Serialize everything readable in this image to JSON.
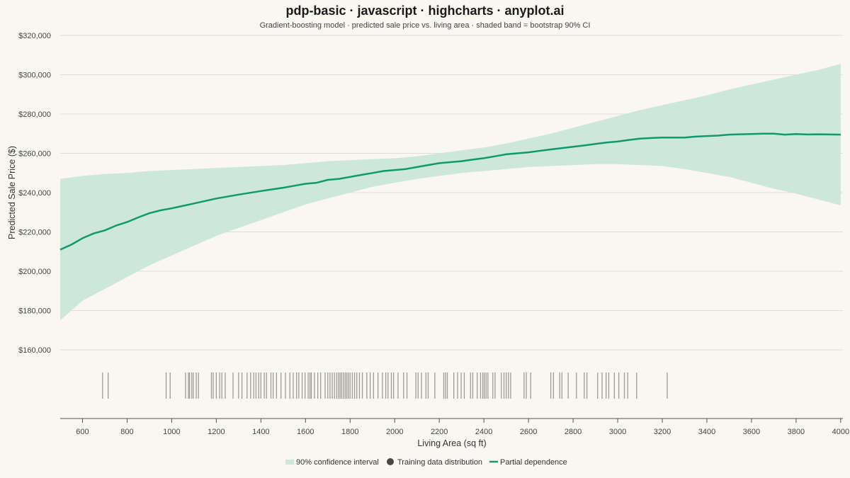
{
  "chart_data": {
    "type": "line",
    "title": "pdp-basic · javascript · highcharts · anyplot.ai",
    "subtitle": "Gradient-boosting model · predicted sale price vs. living area · shaded band = bootstrap 90% CI",
    "xlabel": "Living Area (sq ft)",
    "ylabel": "Predicted Sale Price ($)",
    "xlim": [
      500,
      4010
    ],
    "ylim": [
      160000,
      320000
    ],
    "x_ticks": [
      600,
      800,
      1000,
      1200,
      1400,
      1600,
      1800,
      2000,
      2200,
      2400,
      2600,
      2800,
      3000,
      3200,
      3400,
      3600,
      3800,
      4000
    ],
    "y_ticks": [
      160000,
      180000,
      200000,
      220000,
      240000,
      260000,
      280000,
      300000,
      320000
    ],
    "x_tick_labels": [
      "600",
      "800",
      "1000",
      "1200",
      "1400",
      "1600",
      "1800",
      "2000",
      "2200",
      "2400",
      "2600",
      "2800",
      "3000",
      "3200",
      "3400",
      "3600",
      "3800",
      "4000"
    ],
    "y_tick_labels": [
      "$160,000",
      "$180,000",
      "$200,000",
      "$220,000",
      "$240,000",
      "$260,000",
      "$280,000",
      "$300,000",
      "$320,000"
    ],
    "grid": true,
    "legend_placement": "bottom-center",
    "colors": {
      "line": "#0E9A6C",
      "band": "#CDE7DB",
      "rug": "#9E9B94",
      "grid": "#E0DDD6",
      "axis": "#555555"
    },
    "legend": [
      {
        "name": "90% confidence interval",
        "symbol": "band"
      },
      {
        "name": "Training data distribution",
        "symbol": "dot"
      },
      {
        "name": "Partial dependence",
        "symbol": "line"
      }
    ],
    "series": [
      {
        "name": "Partial dependence",
        "x": [
          500,
          550,
          600,
          650,
          700,
          750,
          800,
          850,
          900,
          950,
          1000,
          1100,
          1200,
          1300,
          1400,
          1500,
          1550,
          1600,
          1650,
          1700,
          1750,
          1800,
          1850,
          1900,
          1950,
          2000,
          2050,
          2100,
          2150,
          2200,
          2250,
          2300,
          2350,
          2400,
          2450,
          2500,
          2600,
          2700,
          2800,
          2850,
          2900,
          2950,
          3000,
          3050,
          3100,
          3150,
          3200,
          3250,
          3300,
          3350,
          3400,
          3450,
          3500,
          3550,
          3600,
          3650,
          3700,
          3750,
          3800,
          3850,
          3900,
          3950,
          4000
        ],
        "y": [
          211000,
          213500,
          216800,
          219200,
          220800,
          223200,
          225000,
          227400,
          229500,
          231000,
          232000,
          234500,
          237000,
          239000,
          240800,
          242500,
          243500,
          244500,
          245000,
          246500,
          247000,
          248000,
          249000,
          250000,
          251000,
          251500,
          252000,
          253000,
          254000,
          255000,
          255500,
          256000,
          256800,
          257500,
          258500,
          259500,
          260500,
          262000,
          263300,
          264000,
          264800,
          265500,
          266000,
          266800,
          267500,
          267800,
          268000,
          268000,
          268000,
          268500,
          268800,
          269000,
          269500,
          269700,
          269800,
          270000,
          270000,
          269500,
          269800,
          269600,
          269700,
          269600,
          269500
        ]
      },
      {
        "name": "90% confidence interval",
        "x": [
          500,
          600,
          700,
          800,
          900,
          1000,
          1100,
          1200,
          1300,
          1400,
          1500,
          1600,
          1700,
          1800,
          1900,
          2000,
          2100,
          2200,
          2300,
          2400,
          2500,
          2600,
          2700,
          2800,
          2900,
          3000,
          3100,
          3200,
          3300,
          3400,
          3500,
          3600,
          3700,
          3800,
          3900,
          4000
        ],
        "low": [
          175000,
          185000,
          191000,
          197000,
          203000,
          208000,
          213000,
          218000,
          222000,
          226000,
          230000,
          234000,
          237000,
          240000,
          243000,
          245000,
          247000,
          248500,
          250000,
          251000,
          252000,
          253000,
          253500,
          254000,
          254500,
          254500,
          254000,
          253500,
          252000,
          250000,
          248000,
          245000,
          242000,
          239500,
          236500,
          233500
        ],
        "high": [
          247000,
          248500,
          249500,
          250000,
          251000,
          251500,
          252000,
          252500,
          253000,
          253500,
          254000,
          255000,
          256000,
          256500,
          257000,
          257500,
          258500,
          260000,
          261500,
          263000,
          265000,
          267500,
          270000,
          273000,
          276000,
          279000,
          282000,
          284500,
          287000,
          289500,
          292500,
          295000,
          297500,
          300000,
          302500,
          305500
        ]
      },
      {
        "name": "Training data distribution",
        "x": [
          690,
          715,
          975,
          993,
          1062,
          1075,
          1080,
          1090,
          1097,
          1110,
          1120,
          1178,
          1186,
          1200,
          1215,
          1225,
          1240,
          1275,
          1300,
          1315,
          1338,
          1354,
          1368,
          1378,
          1390,
          1400,
          1415,
          1425,
          1445,
          1455,
          1470,
          1490,
          1510,
          1530,
          1545,
          1560,
          1570,
          1585,
          1598,
          1612,
          1620,
          1626,
          1640,
          1655,
          1668,
          1688,
          1700,
          1710,
          1720,
          1730,
          1740,
          1748,
          1755,
          1762,
          1770,
          1778,
          1785,
          1792,
          1800,
          1810,
          1820,
          1830,
          1842,
          1855,
          1875,
          1890,
          1905,
          1925,
          1945,
          1960,
          1970,
          1985,
          1995,
          2015,
          2040,
          2055,
          2095,
          2105,
          2120,
          2140,
          2150,
          2180,
          2220,
          2228,
          2236,
          2265,
          2282,
          2298,
          2312,
          2340,
          2350,
          2370,
          2385,
          2395,
          2402,
          2410,
          2418,
          2440,
          2450,
          2478,
          2490,
          2500,
          2510,
          2520,
          2580,
          2590,
          2610,
          2700,
          2712,
          2740,
          2750,
          2778,
          2815,
          2850,
          2862,
          2910,
          2930,
          2948,
          2960,
          2985,
          3005,
          3030,
          3045,
          3085,
          3222
        ]
      }
    ]
  }
}
